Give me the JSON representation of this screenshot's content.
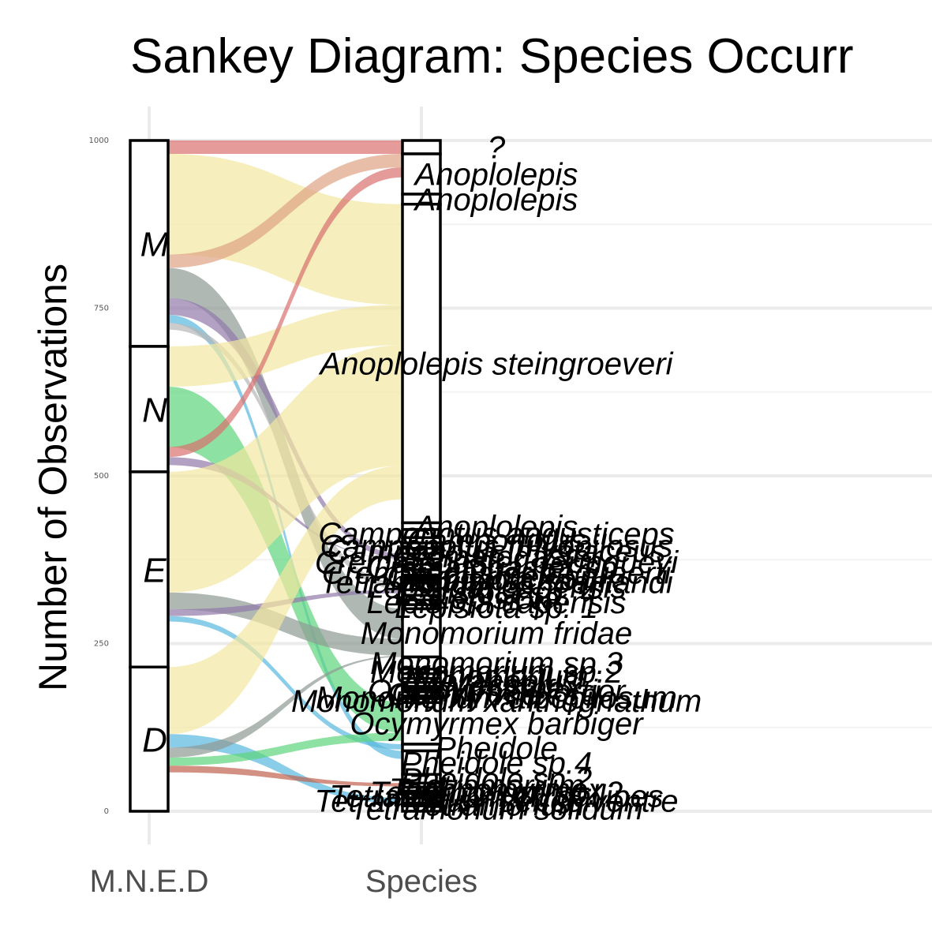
{
  "chart_data": {
    "type": "sankey",
    "title": "Sankey Diagram: Species Occurr",
    "ylabel": "Number of Observations",
    "xlabel": "",
    "x_axes": [
      "M.N.E.D",
      "Species"
    ],
    "ylim": [
      0,
      1000
    ],
    "yticks": [
      0,
      250,
      500,
      750,
      1000
    ],
    "grid": true,
    "legend": "none",
    "strata_left": [
      {
        "label": "M",
        "from": 693,
        "to": 1000
      },
      {
        "label": "N",
        "from": 506,
        "to": 693
      },
      {
        "label": "E",
        "from": 215,
        "to": 506
      },
      {
        "label": "D",
        "from": 0,
        "to": 215
      }
    ],
    "strata_right": [
      {
        "label": "?",
        "from": 980,
        "to": 1000
      },
      {
        "label": "Anoplolepis",
        "from": 920,
        "to": 980
      },
      {
        "label": "Anoplolepis",
        "from": 905,
        "to": 920
      },
      {
        "label": "Anoplolepis steingroeveri",
        "from": 430,
        "to": 905
      },
      {
        "label": "Anoplolepis",
        "from": 420,
        "to": 430
      },
      {
        "label": "Camponotus angusticeps",
        "from": 408,
        "to": 420
      },
      {
        "label": "Camponotus",
        "from": 400,
        "to": 408
      },
      {
        "label": "Camponotus fulvopilosus",
        "from": 392,
        "to": 400
      },
      {
        "label": "Camponotus mystaceus",
        "from": 384,
        "to": 392
      },
      {
        "label": "Crematogaster",
        "from": 376,
        "to": 384
      },
      {
        "label": "Crematogaster peringueyi",
        "from": 368,
        "to": 376
      },
      {
        "label": "Crematogaster sp.",
        "from": 360,
        "to": 368
      },
      {
        "label": "Crematogaster bequaerti",
        "from": 352,
        "to": 360
      },
      {
        "label": "Ocymyrmex sp.",
        "from": 348,
        "to": 352
      },
      {
        "label": "Lepisiota sp.",
        "from": 344,
        "to": 348
      },
      {
        "label": "Tetramorium schoenlandi",
        "from": 340,
        "to": 344
      },
      {
        "label": "Lepisiota capensis",
        "from": 330,
        "to": 340
      },
      {
        "label": "Lepisiota sp. 4",
        "from": 322,
        "to": 330
      },
      {
        "label": "Lepisiota",
        "from": 315,
        "to": 322
      },
      {
        "label": "Lepisiota capensis",
        "from": 308,
        "to": 315
      },
      {
        "label": "Lepisiota sp. 1",
        "from": 302,
        "to": 308
      },
      {
        "label": "Monomorium fridae",
        "from": 230,
        "to": 302
      },
      {
        "label": "Monomorium sp.3",
        "from": 212,
        "to": 230
      },
      {
        "label": "Monomorium sp.2",
        "from": 205,
        "to": 212
      },
      {
        "label": "Monomorium",
        "from": 198,
        "to": 205
      },
      {
        "label": "Meranoplus",
        "from": 192,
        "to": 198
      },
      {
        "label": "Messor",
        "from": 186,
        "to": 192
      },
      {
        "label": "Ocymyrmex",
        "from": 182,
        "to": 186
      },
      {
        "label": "Ocymyrmex fortior",
        "from": 178,
        "to": 182
      },
      {
        "label": "Ocymyrmex sp.",
        "from": 172,
        "to": 178
      },
      {
        "label": "Monomorium albopilosum",
        "from": 168,
        "to": 172
      },
      {
        "label": "Monomorium xanthognathum",
        "from": 162,
        "to": 168
      },
      {
        "label": "Ocymyrmex barbiger",
        "from": 100,
        "to": 162
      },
      {
        "label": "Pheidole",
        "from": 90,
        "to": 100
      },
      {
        "label": "Pheidole sp.4",
        "from": 55,
        "to": 90
      },
      {
        "label": "Pheidole sp.2",
        "from": 42,
        "to": 55
      },
      {
        "label": "Tetramorium",
        "from": 36,
        "to": 42
      },
      {
        "label": "Technomyrmex",
        "from": 30,
        "to": 36
      },
      {
        "label": "Tetramorium sp. 2",
        "from": 26,
        "to": 30
      },
      {
        "label": "Tetramorium cf. gallipes",
        "from": 20,
        "to": 26
      },
      {
        "label": "Tetramorium sericeiventre",
        "from": 12,
        "to": 20
      },
      {
        "label": "Tetramorium",
        "from": 8,
        "to": 12
      },
      {
        "label": "Tetramorium solidum",
        "from": 0,
        "to": 8
      }
    ],
    "flows": [
      {
        "from": "M",
        "to": "?",
        "value": 20,
        "color": "#D9706E"
      },
      {
        "from": "M",
        "to": "Anoplolepis steingroeveri",
        "value": 150,
        "color": "#F2E7A0"
      },
      {
        "from": "M",
        "to": "Anoplolepis",
        "value": 20,
        "color": "#E0A285"
      },
      {
        "from": "M",
        "to": "Monomorium fridae",
        "value": 45,
        "color": "#8E9A94"
      },
      {
        "from": "M",
        "to": "Crematogaster",
        "value": 25,
        "color": "#9279A8"
      },
      {
        "from": "M",
        "to": "Pheidole sp.4",
        "value": 12,
        "color": "#59B8DE"
      },
      {
        "from": "M",
        "to": "Lepisiota capensis",
        "value": 10,
        "color": "#B7B7B7"
      },
      {
        "from": "N",
        "to": "Anoplolepis steingroeveri",
        "value": 60,
        "color": "#F2E7A0"
      },
      {
        "from": "N",
        "to": "Ocymyrmex barbiger",
        "value": 90,
        "color": "#5CD47A"
      },
      {
        "from": "N",
        "to": "Anoplolepis",
        "value": 15,
        "color": "#D9706E"
      },
      {
        "from": "N",
        "to": "Crematogaster",
        "value": 12,
        "color": "#9279A8"
      },
      {
        "from": "E",
        "to": "Anoplolepis steingroeveri",
        "value": 180,
        "color": "#F2E7A0"
      },
      {
        "from": "E",
        "to": "Monomorium fridae",
        "value": 25,
        "color": "#8E9A94"
      },
      {
        "from": "E",
        "to": "Lepisiota sp. 4",
        "value": 10,
        "color": "#9279A8"
      },
      {
        "from": "E",
        "to": "Pheidole",
        "value": 8,
        "color": "#59B8DE"
      },
      {
        "from": "D",
        "to": "Anoplolepis steingroeveri",
        "value": 100,
        "color": "#F2E7A0"
      },
      {
        "from": "D",
        "to": "Tetramorium sericeiventre",
        "value": 20,
        "color": "#59B8DE"
      },
      {
        "from": "D",
        "to": "Monomorium fridae",
        "value": 15,
        "color": "#8E9A94"
      },
      {
        "from": "D",
        "to": "Ocymyrmex barbiger",
        "value": 12,
        "color": "#5CD47A"
      },
      {
        "from": "D",
        "to": "Tetramorium",
        "value": 10,
        "color": "#C0624E"
      }
    ]
  }
}
